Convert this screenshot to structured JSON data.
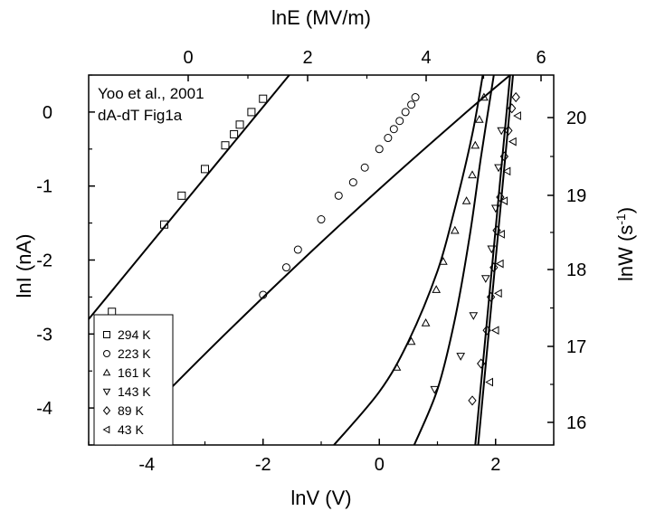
{
  "chart_data": {
    "type": "scatter",
    "title": "",
    "annotations": [
      "Yoo et al., 2001",
      "dA-dT Fig1a"
    ],
    "x_bottom": {
      "label": "lnV (V)",
      "range": [
        -5,
        3
      ],
      "ticks": [
        "-4",
        "-2",
        "0",
        "2"
      ]
    },
    "y_left": {
      "label": "lnI (nA)",
      "range": [
        -4.5,
        0.5
      ],
      "ticks": [
        "0",
        "-1",
        "-2",
        "-3",
        "-4"
      ]
    },
    "x_top": {
      "label": "lnE (MV/m)",
      "ticks": [
        "0",
        "2",
        "4",
        "6"
      ]
    },
    "y_right": {
      "label": "lnW (s",
      "label_sup": "-1",
      "label_end": ")",
      "ticks": [
        "20",
        "19",
        "18",
        "17",
        "16"
      ]
    },
    "legend": {
      "placement": "bottom-left"
    },
    "series": [
      {
        "name": "294 K",
        "marker": "square",
        "x": [
          -4.6,
          -3.7,
          -3.4,
          -3.0,
          -2.65,
          -2.5,
          -2.4,
          -2.2,
          -2.0
        ],
        "y": [
          -2.7,
          -1.52,
          -1.13,
          -0.77,
          -0.45,
          -0.3,
          -0.17,
          0.0,
          0.18
        ]
      },
      {
        "name": "223 K",
        "marker": "circle",
        "x": [
          -2.0,
          -1.6,
          -1.4,
          -1.0,
          -0.7,
          -0.45,
          -0.25,
          0.0,
          0.15,
          0.25,
          0.35,
          0.45,
          0.55,
          0.62
        ],
        "y": [
          -2.47,
          -2.1,
          -1.86,
          -1.45,
          -1.13,
          -0.95,
          -0.75,
          -0.5,
          -0.35,
          -0.23,
          -0.12,
          0.0,
          0.1,
          0.2
        ]
      },
      {
        "name": "161 K",
        "marker": "triangle-up",
        "x": [
          0.3,
          0.55,
          0.8,
          0.98,
          1.1,
          1.3,
          1.5,
          1.6,
          1.65,
          1.72,
          1.8
        ],
        "y": [
          -3.45,
          -3.1,
          -2.85,
          -2.4,
          -2.02,
          -1.6,
          -1.2,
          -0.85,
          -0.45,
          -0.1,
          0.2
        ]
      },
      {
        "name": "143 K",
        "marker": "triangle-down",
        "x": [
          0.95,
          1.4,
          1.62,
          1.83,
          1.93,
          2.0,
          2.05,
          2.1
        ],
        "y": [
          -3.75,
          -3.3,
          -2.75,
          -2.25,
          -1.85,
          -1.3,
          -0.75,
          -0.25
        ]
      },
      {
        "name": "89 K",
        "marker": "diamond",
        "x": [
          1.6,
          1.75,
          1.85,
          1.92,
          1.97,
          2.02,
          2.08,
          2.15,
          2.22,
          2.28,
          2.35
        ],
        "y": [
          -3.9,
          -3.4,
          -2.95,
          -2.5,
          -2.1,
          -1.6,
          -1.15,
          -0.6,
          -0.25,
          0.05,
          0.2
        ]
      },
      {
        "name": "43 K",
        "marker": "triangle-left",
        "x": [
          1.9,
          2.0,
          2.05,
          2.08,
          2.1,
          2.15,
          2.2,
          2.3,
          2.38
        ],
        "y": [
          -3.65,
          -2.95,
          -2.45,
          -2.05,
          -1.65,
          -1.2,
          -0.8,
          -0.4,
          -0.05
        ]
      }
    ],
    "fit_curves": [
      {
        "points": [
          [
            -5.0,
            -2.8
          ],
          [
            -1.55,
            0.5
          ]
        ]
      },
      {
        "points": [
          [
            -4.55,
            -4.5
          ],
          [
            -3.0,
            -3.27
          ],
          [
            -1.5,
            -2.13
          ],
          [
            0.0,
            -1.04
          ],
          [
            1.5,
            0.0
          ],
          [
            2.25,
            0.5
          ]
        ]
      },
      {
        "points": [
          [
            -0.78,
            -4.5
          ],
          [
            0.0,
            -3.78
          ],
          [
            0.5,
            -3.1
          ],
          [
            1.0,
            -2.15
          ],
          [
            1.3,
            -1.3
          ],
          [
            1.6,
            -0.3
          ],
          [
            1.78,
            0.5
          ]
        ]
      },
      {
        "points": [
          [
            0.6,
            -4.5
          ],
          [
            1.0,
            -3.75
          ],
          [
            1.3,
            -2.8
          ],
          [
            1.55,
            -1.7
          ],
          [
            1.75,
            -0.6
          ],
          [
            1.97,
            0.5
          ]
        ]
      },
      {
        "points": [
          [
            1.65,
            -4.5
          ],
          [
            2.25,
            0.5
          ]
        ]
      },
      {
        "points": [
          [
            1.7,
            -4.5
          ],
          [
            2.3,
            0.5
          ]
        ]
      }
    ]
  }
}
